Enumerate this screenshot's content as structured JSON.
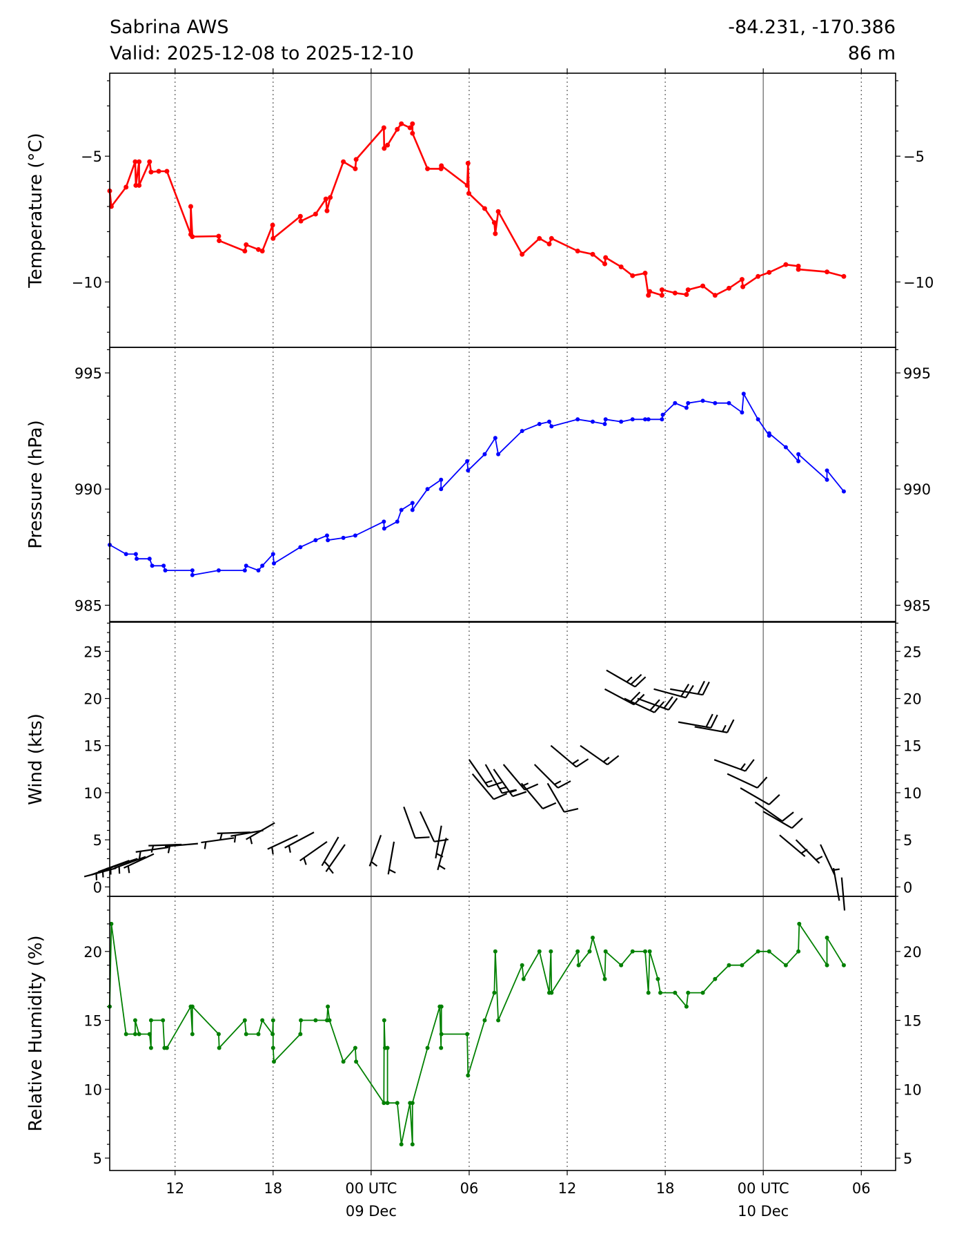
{
  "header": {
    "station": "Sabrina AWS",
    "valid": "Valid: 2025-12-08 to 2025-12-10",
    "coords": "-84.231, -170.386",
    "elevation": "86 m"
  },
  "chart_data": [
    {
      "type": "line",
      "id": "temperature",
      "ylabel": "Temperature (°C)",
      "color": "#ff0000",
      "xlim": [
        8,
        56.1
      ],
      "ylim": [
        -12.6,
        -1.7
      ],
      "yticks": [
        {
          "v": -5,
          "label": "−5"
        },
        {
          "v": -10,
          "label": "−10"
        }
      ],
      "x_units": "hours since 2025-12-08 00 UTC",
      "points": [
        [
          8.0,
          -6.38
        ],
        [
          8.1,
          -7.0
        ],
        [
          9.0,
          -6.23
        ],
        [
          9.56,
          -5.22
        ],
        [
          9.6,
          -6.16
        ],
        [
          9.8,
          -5.22
        ],
        [
          9.8,
          -6.16
        ],
        [
          10.44,
          -5.22
        ],
        [
          10.53,
          -5.63
        ],
        [
          11.0,
          -5.6
        ],
        [
          11.5,
          -5.6
        ],
        [
          12.96,
          -8.11
        ],
        [
          12.96,
          -7.0
        ],
        [
          13.06,
          -8.2
        ],
        [
          14.67,
          -8.18
        ],
        [
          14.7,
          -8.36
        ],
        [
          16.27,
          -8.77
        ],
        [
          16.35,
          -8.52
        ],
        [
          17.1,
          -8.71
        ],
        [
          17.34,
          -8.77
        ],
        [
          17.97,
          -7.74
        ],
        [
          18.0,
          -8.27
        ],
        [
          19.67,
          -7.39
        ],
        [
          19.7,
          -7.58
        ],
        [
          20.6,
          -7.3
        ],
        [
          21.23,
          -6.7
        ],
        [
          21.3,
          -7.17
        ],
        [
          21.5,
          -6.64
        ],
        [
          22.3,
          -5.22
        ],
        [
          23.03,
          -5.5
        ],
        [
          23.08,
          -5.13
        ],
        [
          24.78,
          -3.87
        ],
        [
          24.8,
          -4.69
        ],
        [
          25.0,
          -4.56
        ],
        [
          25.6,
          -3.93
        ],
        [
          25.85,
          -3.71
        ],
        [
          26.38,
          -3.87
        ],
        [
          26.53,
          -3.71
        ],
        [
          26.53,
          -4.09
        ],
        [
          27.45,
          -5.5
        ],
        [
          28.28,
          -5.5
        ],
        [
          28.3,
          -5.38
        ],
        [
          29.88,
          -6.16
        ],
        [
          29.93,
          -5.28
        ],
        [
          29.98,
          -6.48
        ],
        [
          30.95,
          -7.08
        ],
        [
          31.54,
          -7.64
        ],
        [
          31.6,
          -8.08
        ],
        [
          31.78,
          -7.2
        ],
        [
          33.24,
          -8.9
        ],
        [
          34.3,
          -8.27
        ],
        [
          34.9,
          -8.49
        ],
        [
          35.04,
          -8.27
        ],
        [
          36.64,
          -8.77
        ],
        [
          37.56,
          -8.9
        ],
        [
          38.3,
          -9.28
        ],
        [
          38.35,
          -9.03
        ],
        [
          39.3,
          -9.4
        ],
        [
          40.0,
          -9.75
        ],
        [
          40.77,
          -9.65
        ],
        [
          40.97,
          -10.53
        ],
        [
          41.05,
          -10.38
        ],
        [
          41.8,
          -10.53
        ],
        [
          41.8,
          -10.31
        ],
        [
          42.6,
          -10.44
        ],
        [
          43.3,
          -10.5
        ],
        [
          43.4,
          -10.31
        ],
        [
          44.3,
          -10.16
        ],
        [
          45.05,
          -10.53
        ],
        [
          45.9,
          -10.25
        ],
        [
          46.7,
          -9.9
        ],
        [
          46.75,
          -10.19
        ],
        [
          47.68,
          -9.78
        ],
        [
          48.36,
          -9.62
        ],
        [
          49.38,
          -9.31
        ],
        [
          50.15,
          -9.37
        ],
        [
          50.15,
          -9.5
        ],
        [
          51.9,
          -9.6
        ],
        [
          52.93,
          -9.78
        ]
      ]
    },
    {
      "type": "line",
      "id": "pressure",
      "ylabel": "Pressure (hPa)",
      "color": "#0000ff",
      "xlim": [
        8,
        56.1
      ],
      "ylim": [
        984.3,
        996.1
      ],
      "yticks": [
        {
          "v": 985,
          "label": "985"
        },
        {
          "v": 990,
          "label": "990"
        },
        {
          "v": 995,
          "label": "995"
        }
      ],
      "points": [
        [
          8.0,
          987.6
        ],
        [
          9.0,
          987.2
        ],
        [
          9.6,
          987.2
        ],
        [
          9.65,
          987.0
        ],
        [
          10.44,
          987.0
        ],
        [
          10.6,
          986.7
        ],
        [
          11.3,
          986.7
        ],
        [
          11.4,
          986.5
        ],
        [
          13.06,
          986.5
        ],
        [
          13.06,
          986.3
        ],
        [
          14.67,
          986.5
        ],
        [
          16.27,
          986.5
        ],
        [
          16.35,
          986.7
        ],
        [
          17.1,
          986.5
        ],
        [
          17.34,
          986.7
        ],
        [
          18.0,
          987.2
        ],
        [
          18.05,
          986.8
        ],
        [
          19.67,
          987.5
        ],
        [
          20.6,
          987.8
        ],
        [
          21.3,
          988.0
        ],
        [
          21.35,
          987.8
        ],
        [
          22.3,
          987.9
        ],
        [
          23.03,
          988.0
        ],
        [
          24.78,
          988.6
        ],
        [
          24.8,
          988.3
        ],
        [
          25.6,
          988.6
        ],
        [
          25.85,
          989.1
        ],
        [
          26.53,
          989.4
        ],
        [
          26.53,
          989.1
        ],
        [
          27.45,
          990.0
        ],
        [
          28.28,
          990.4
        ],
        [
          28.28,
          990.0
        ],
        [
          29.88,
          991.2
        ],
        [
          29.93,
          990.8
        ],
        [
          30.95,
          991.5
        ],
        [
          31.6,
          992.2
        ],
        [
          31.78,
          991.5
        ],
        [
          33.24,
          992.5
        ],
        [
          34.3,
          992.8
        ],
        [
          34.9,
          992.9
        ],
        [
          35.04,
          992.7
        ],
        [
          36.64,
          993.0
        ],
        [
          37.56,
          992.9
        ],
        [
          38.3,
          992.8
        ],
        [
          38.35,
          993.0
        ],
        [
          39.3,
          992.9
        ],
        [
          40.0,
          993.0
        ],
        [
          40.77,
          993.0
        ],
        [
          40.97,
          993.0
        ],
        [
          41.8,
          993.0
        ],
        [
          41.85,
          993.2
        ],
        [
          42.6,
          993.7
        ],
        [
          43.3,
          993.5
        ],
        [
          43.4,
          993.7
        ],
        [
          44.3,
          993.8
        ],
        [
          45.05,
          993.7
        ],
        [
          45.9,
          993.7
        ],
        [
          46.7,
          993.3
        ],
        [
          46.8,
          994.1
        ],
        [
          47.68,
          993.0
        ],
        [
          48.36,
          992.3
        ],
        [
          48.36,
          992.4
        ],
        [
          49.38,
          991.8
        ],
        [
          50.15,
          991.2
        ],
        [
          50.15,
          991.5
        ],
        [
          51.9,
          990.4
        ],
        [
          51.9,
          990.8
        ],
        [
          52.93,
          989.9
        ]
      ]
    },
    {
      "type": "barbs",
      "id": "wind",
      "ylabel": "Wind (kts)",
      "color": "#000000",
      "xlim": [
        8,
        56.1
      ],
      "ylim": [
        -1.0,
        28.1
      ],
      "yticks": [
        {
          "v": 0,
          "label": "0"
        },
        {
          "v": 5,
          "label": "5"
        },
        {
          "v": 10,
          "label": "10"
        },
        {
          "v": 15,
          "label": "15"
        },
        {
          "v": 20,
          "label": "20"
        },
        {
          "v": 25,
          "label": "25"
        }
      ],
      "barb_fields": [
        "hour",
        "speed_kts",
        "direction_deg"
      ],
      "barbs": [
        [
          8.4,
          2,
          255
        ],
        [
          8.8,
          2.5,
          250
        ],
        [
          9.2,
          2.8,
          250
        ],
        [
          9.7,
          3,
          252
        ],
        [
          10.2,
          3.2,
          250
        ],
        [
          10.7,
          3.5,
          245
        ],
        [
          11.6,
          4.2,
          262
        ],
        [
          12.4,
          4.5,
          268
        ],
        [
          13.4,
          4.6,
          265
        ],
        [
          15.6,
          5.2,
          262
        ],
        [
          16.6,
          5.8,
          268
        ],
        [
          17.4,
          6.0,
          260
        ],
        [
          18.1,
          6.8,
          240
        ],
        [
          19.5,
          5.5,
          245
        ],
        [
          20.5,
          5.8,
          242
        ],
        [
          21.3,
          4.8,
          235
        ],
        [
          22.0,
          5.3,
          210
        ],
        [
          22.4,
          4.5,
          215
        ],
        [
          24.6,
          5.5,
          200
        ],
        [
          25.4,
          4.8,
          190
        ],
        [
          26.0,
          8.5,
          160
        ],
        [
          27.0,
          8.0,
          155
        ],
        [
          28.3,
          6.5,
          190
        ],
        [
          28.6,
          5.2,
          195
        ],
        [
          30.0,
          13.5,
          145
        ],
        [
          30.2,
          12.0,
          140
        ],
        [
          31.0,
          13.0,
          150
        ],
        [
          31.5,
          12.5,
          145
        ],
        [
          32.1,
          13.0,
          140
        ],
        [
          33.2,
          11.0,
          140
        ],
        [
          34.0,
          13.0,
          135
        ],
        [
          34.8,
          11.0,
          150
        ],
        [
          35.0,
          15.0,
          130
        ],
        [
          36.8,
          15.0,
          125
        ],
        [
          38.4,
          23.0,
          120
        ],
        [
          38.3,
          21.0,
          118
        ],
        [
          39.5,
          20.0,
          115
        ],
        [
          40.3,
          20.0,
          110
        ],
        [
          41.3,
          21.0,
          105
        ],
        [
          42.3,
          21.0,
          100
        ],
        [
          42.8,
          17.5,
          100
        ],
        [
          43.8,
          17.0,
          100
        ],
        [
          45.0,
          13.5,
          110
        ],
        [
          45.8,
          12.0,
          115
        ],
        [
          46.6,
          10.5,
          120
        ],
        [
          47.5,
          9.0,
          125
        ],
        [
          48.0,
          8.0,
          120
        ],
        [
          49.0,
          5.5,
          130
        ],
        [
          50.0,
          5.0,
          135
        ],
        [
          51.5,
          4.5,
          155
        ],
        [
          52.3,
          2.0,
          170
        ],
        [
          52.8,
          1.0,
          175
        ]
      ]
    },
    {
      "type": "line",
      "id": "humidity",
      "ylabel": "Relative Humidity (%)",
      "color": "#008000",
      "xlim": [
        8,
        56.1
      ],
      "ylim": [
        4.1,
        24.0
      ],
      "yticks": [
        {
          "v": 5,
          "label": "5"
        },
        {
          "v": 10,
          "label": "10"
        },
        {
          "v": 15,
          "label": "15"
        },
        {
          "v": 20,
          "label": "20"
        }
      ],
      "points": [
        [
          8.0,
          16
        ],
        [
          8.1,
          22
        ],
        [
          9.0,
          14
        ],
        [
          9.56,
          14
        ],
        [
          9.56,
          15
        ],
        [
          9.8,
          14
        ],
        [
          10.44,
          14
        ],
        [
          10.53,
          13
        ],
        [
          10.53,
          15
        ],
        [
          11.26,
          15
        ],
        [
          11.35,
          13
        ],
        [
          11.5,
          13
        ],
        [
          12.96,
          16
        ],
        [
          13.06,
          14
        ],
        [
          13.06,
          16
        ],
        [
          14.67,
          14
        ],
        [
          14.7,
          13
        ],
        [
          16.27,
          15
        ],
        [
          16.35,
          14
        ],
        [
          17.1,
          14
        ],
        [
          17.34,
          15
        ],
        [
          17.97,
          14
        ],
        [
          18.0,
          15
        ],
        [
          18.0,
          13
        ],
        [
          18.05,
          12
        ],
        [
          19.67,
          14
        ],
        [
          19.7,
          15
        ],
        [
          20.6,
          15
        ],
        [
          21.3,
          15
        ],
        [
          21.35,
          16
        ],
        [
          21.45,
          15
        ],
        [
          22.3,
          12
        ],
        [
          23.03,
          13
        ],
        [
          23.08,
          12
        ],
        [
          24.78,
          9
        ],
        [
          24.8,
          15
        ],
        [
          24.85,
          13
        ],
        [
          25.0,
          13
        ],
        [
          25.0,
          9
        ],
        [
          25.6,
          9
        ],
        [
          25.85,
          6
        ],
        [
          26.38,
          9
        ],
        [
          26.53,
          6
        ],
        [
          26.53,
          9
        ],
        [
          27.45,
          13
        ],
        [
          28.2,
          16
        ],
        [
          28.28,
          13
        ],
        [
          28.3,
          16
        ],
        [
          28.3,
          14
        ],
        [
          29.88,
          14
        ],
        [
          29.93,
          11
        ],
        [
          30.95,
          15
        ],
        [
          31.54,
          17
        ],
        [
          31.6,
          20
        ],
        [
          31.78,
          15
        ],
        [
          33.24,
          19
        ],
        [
          33.33,
          18
        ],
        [
          34.3,
          20
        ],
        [
          34.9,
          17
        ],
        [
          35.0,
          20
        ],
        [
          35.04,
          17
        ],
        [
          36.64,
          20
        ],
        [
          36.7,
          19
        ],
        [
          37.37,
          20
        ],
        [
          37.56,
          21
        ],
        [
          38.3,
          18
        ],
        [
          38.35,
          20
        ],
        [
          39.3,
          19
        ],
        [
          40.0,
          20
        ],
        [
          40.77,
          20
        ],
        [
          40.97,
          17
        ],
        [
          41.05,
          20
        ],
        [
          41.55,
          18
        ],
        [
          41.7,
          17
        ],
        [
          42.6,
          17
        ],
        [
          43.3,
          16
        ],
        [
          43.4,
          17
        ],
        [
          44.3,
          17
        ],
        [
          45.05,
          18
        ],
        [
          45.9,
          19
        ],
        [
          46.7,
          19
        ],
        [
          47.68,
          20
        ],
        [
          48.36,
          20
        ],
        [
          49.38,
          19
        ],
        [
          50.15,
          20
        ],
        [
          50.2,
          22
        ],
        [
          51.9,
          19
        ],
        [
          51.9,
          21
        ],
        [
          52.93,
          19
        ]
      ]
    }
  ],
  "xaxis": {
    "ticks": [
      {
        "h": 12,
        "label": "12",
        "sub": ""
      },
      {
        "h": 18,
        "label": "18",
        "sub": ""
      },
      {
        "h": 24,
        "label": "00 UTC",
        "sub": "09 Dec"
      },
      {
        "h": 30,
        "label": "06",
        "sub": ""
      },
      {
        "h": 36,
        "label": "12",
        "sub": ""
      },
      {
        "h": 42,
        "label": "18",
        "sub": ""
      },
      {
        "h": 48,
        "label": "00 UTC",
        "sub": "10 Dec"
      },
      {
        "h": 54,
        "label": "06",
        "sub": ""
      }
    ]
  }
}
